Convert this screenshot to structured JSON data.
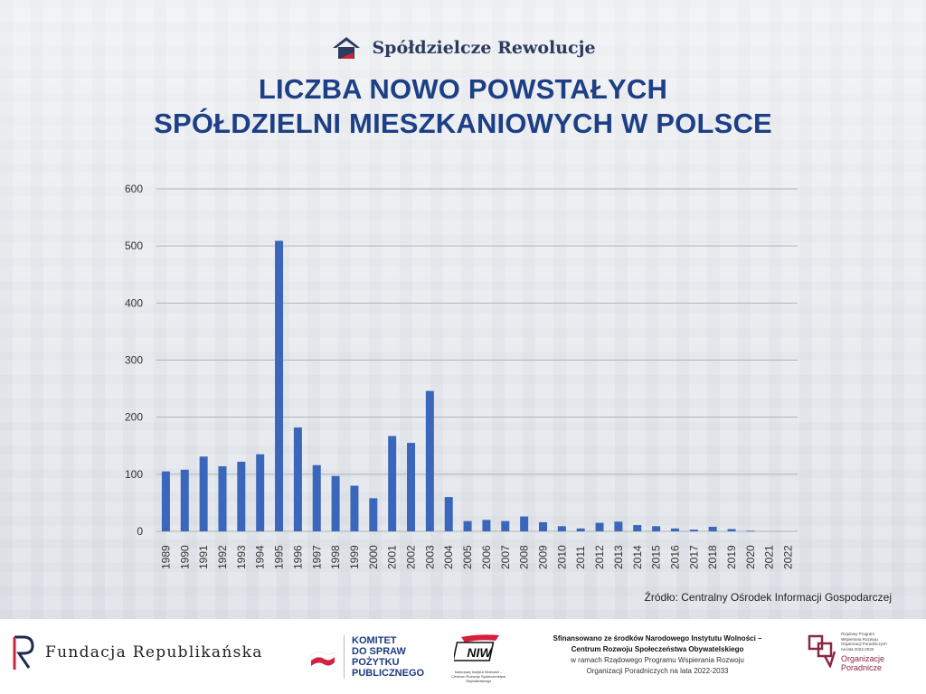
{
  "brand": {
    "name": "Spółdzielcze Rewolucje"
  },
  "title_line1": "LICZBA NOWO POWSTAŁYCH",
  "title_line2": "SPÓŁDZIELNI MIESZKANIOWYCH W POLSCE",
  "source": "Źródło: Centralny Ośrodek Informacji Gospodarczej",
  "colors": {
    "bar": "#3a67bb",
    "title": "#1d3f86",
    "grid": "#aeb3bb",
    "axis_text": "#333333"
  },
  "chart_data": {
    "type": "bar",
    "categories": [
      "1989",
      "1990",
      "1991",
      "1992",
      "1993",
      "1994",
      "1995",
      "1996",
      "1997",
      "1998",
      "1999",
      "2000",
      "2001",
      "2002",
      "2003",
      "2004",
      "2005",
      "2006",
      "2007",
      "2008",
      "2009",
      "2010",
      "2011",
      "2012",
      "2013",
      "2014",
      "2015",
      "2016",
      "2017",
      "2018",
      "2019",
      "2020",
      "2021",
      "2022"
    ],
    "values": [
      105,
      108,
      131,
      114,
      122,
      135,
      509,
      182,
      116,
      97,
      80,
      58,
      167,
      155,
      246,
      60,
      18,
      20,
      18,
      26,
      16,
      9,
      5,
      15,
      17,
      11,
      9,
      5,
      3,
      8,
      4,
      1,
      0,
      0
    ],
    "yticks": [
      0,
      100,
      200,
      300,
      400,
      500,
      600
    ],
    "ylim": [
      0,
      600
    ],
    "grid": true,
    "legend": false
  },
  "footer": {
    "fundacja": "Fundacja Republikańska",
    "komitet_lines": [
      "KOMITET",
      "DO SPRAW",
      "POŻYTKU",
      "PUBLICZNEGO"
    ],
    "niw_logo": "NIW",
    "niw_caption": "Narodowy Instytut Wolności – Centrum Rozwoju Społeczeństwa Obywatelskiego",
    "funding_line1": "Sfinansowano ze środków Narodowego Instytutu Wolności –",
    "funding_line2": "Centrum Rozwoju Społeczeństwa Obywatelskiego",
    "funding_line3": "w ramach Rządowego Programu Wspierania Rozwoju",
    "funding_line4": "Organizacji Poradniczych na lata 2022-2033",
    "org_small_lines": [
      "Rządowy Program",
      "Wspierania Rozwoju",
      "Organizacji Poradniczych",
      "na lata 2022-2033"
    ],
    "org_big_lines": [
      "Organizacje",
      "Poradnicze"
    ]
  }
}
